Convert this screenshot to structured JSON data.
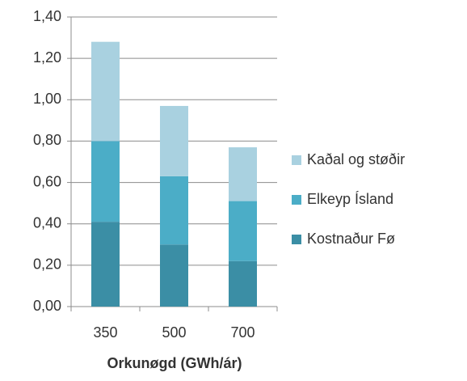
{
  "chart_data": {
    "type": "stacked_bar",
    "x_label": "Orkunøgd (GWh/ár)",
    "categories": [
      "350",
      "500",
      "700"
    ],
    "series": [
      {
        "name": "Kostnaður Fø",
        "color": "#3b8ea5",
        "values": [
          0.41,
          0.3,
          0.22
        ]
      },
      {
        "name": "Elkeyp Ísland",
        "color": "#4badc7",
        "values": [
          0.39,
          0.33,
          0.29
        ]
      },
      {
        "name": "Kaðal og støðir",
        "color": "#a9d1e0",
        "values": [
          0.48,
          0.34,
          0.26
        ]
      }
    ],
    "ylim": [
      0,
      1.4
    ],
    "yticks": [
      {
        "value": 0,
        "label": "0,00"
      },
      {
        "value": 0.2,
        "label": "0,20"
      },
      {
        "value": 0.4,
        "label": "0,40"
      },
      {
        "value": 0.6,
        "label": "0,60"
      },
      {
        "value": 0.8,
        "label": "0,80"
      },
      {
        "value": 1.0,
        "label": "1,00"
      },
      {
        "value": 1.2,
        "label": "1,20"
      },
      {
        "value": 1.4,
        "label": "1,40"
      }
    ],
    "grid": true,
    "legend": "right"
  }
}
